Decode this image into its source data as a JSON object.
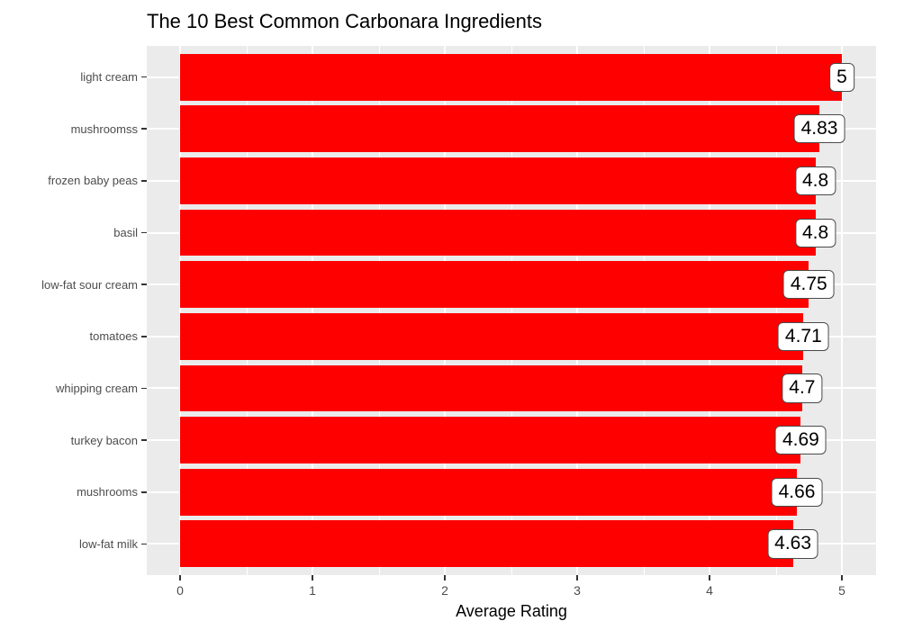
{
  "chart_data": {
    "type": "bar",
    "orientation": "horizontal",
    "title": "The 10 Best Common Carbonara Ingredients",
    "xlabel": "Average Rating",
    "ylabel": "",
    "categories": [
      "light cream",
      "mushroomss",
      "frozen baby peas",
      "basil",
      "low-fat sour cream",
      "tomatoes",
      "whipping cream",
      "turkey bacon",
      "mushrooms",
      "low-fat milk"
    ],
    "values": [
      5,
      4.83,
      4.8,
      4.8,
      4.75,
      4.71,
      4.7,
      4.69,
      4.66,
      4.63
    ],
    "value_labels": [
      "5",
      "4.83",
      "4.8",
      "4.8",
      "4.75",
      "4.71",
      "4.7",
      "4.69",
      "4.66",
      "4.63"
    ],
    "x_ticks": [
      "0",
      "1",
      "2",
      "3",
      "4",
      "5"
    ],
    "x_tick_values": [
      0,
      1,
      2,
      3,
      4,
      5
    ],
    "x_minor_values": [
      0.5,
      1.5,
      2.5,
      3.5,
      4.5
    ],
    "xlim": [
      0,
      5
    ],
    "grid": true,
    "legend": false,
    "colors": {
      "bar_fill": "#FF0000",
      "panel_background": "#EBEBEB",
      "gridline": "#FFFFFF",
      "axis_text": "#4D4D4D",
      "title_text": "#000000",
      "label_box_fill": "#FFFFFF",
      "label_box_border": "#4A4A4A",
      "label_text": "#000000",
      "tick_mark": "#333333"
    }
  }
}
